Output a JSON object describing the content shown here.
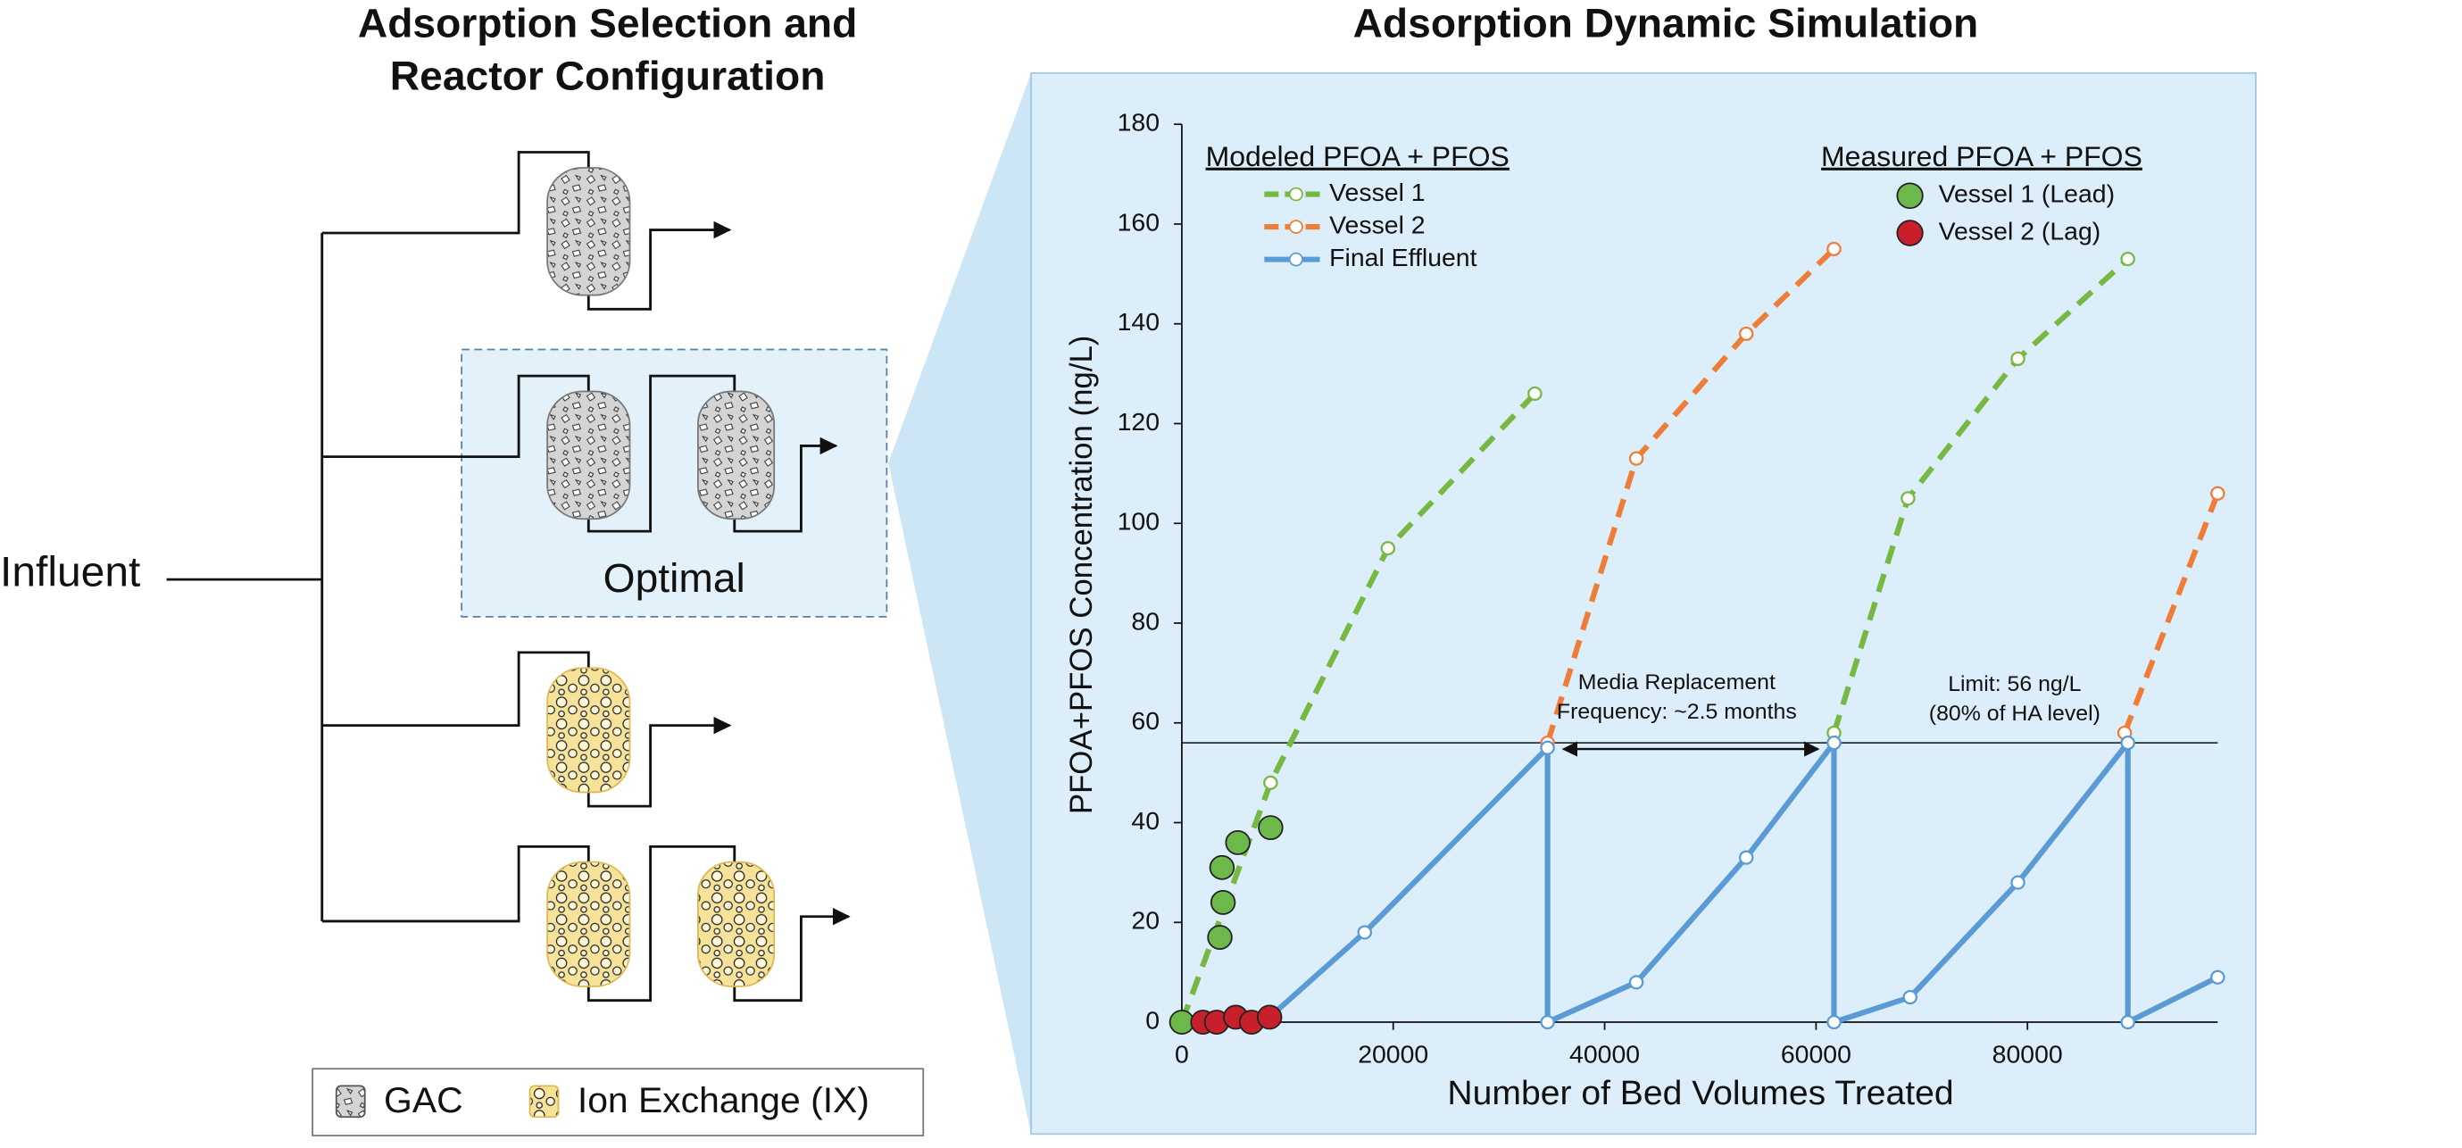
{
  "left_panel": {
    "title_lines": [
      "Adsorption Selection and",
      "Reactor Configuration"
    ],
    "influent_label": "Influent",
    "optimal_label": "Optimal",
    "legend": [
      "GAC",
      "Ion Exchange (IX)"
    ]
  },
  "chart_data": {
    "type": "line",
    "title": "Adsorption Dynamic Simulation",
    "x_label": "Number of Bed Volumes Treated",
    "y_label": "PFOA+PFOS Concentration (ng/L)",
    "xlim": [
      0,
      98000
    ],
    "ylim": [
      0,
      180
    ],
    "xticks": [
      0,
      20000,
      40000,
      60000,
      80000
    ],
    "yticks": [
      0,
      20,
      40,
      60,
      80,
      100,
      120,
      140,
      160,
      180
    ],
    "legend": {
      "modeled_title": "Modeled PFOA + PFOS",
      "measured_title": "Measured PFOA + PFOS"
    },
    "series": [
      {
        "name": "Vessel 1",
        "color": "#77b843",
        "style": "dashed",
        "x": [
          0,
          8400,
          19500,
          33400,
          null,
          61700,
          68700,
          79100,
          89500
        ],
        "values": [
          0,
          48,
          95,
          126,
          null,
          58,
          105,
          133,
          153
        ]
      },
      {
        "name": "Vessel 2",
        "color": "#ef7d3a",
        "style": "dashed",
        "x": [
          34600,
          43000,
          53400,
          61700,
          null,
          89200,
          98000
        ],
        "values": [
          56,
          113,
          138,
          155,
          null,
          58,
          106
        ]
      },
      {
        "name": "Final Effluent",
        "color": "#5b9bd5",
        "style": "solid",
        "x": [
          8300,
          17300,
          34600,
          34600,
          43000,
          53400,
          61700,
          61700,
          68900,
          79100,
          89500,
          89500,
          98000
        ],
        "values": [
          1,
          18,
          55,
          0,
          8,
          33,
          56,
          0,
          5,
          28,
          56,
          0,
          9
        ]
      },
      {
        "name": "Vessel 1 (Lead)",
        "color": "#6cb84a",
        "style": "scatter",
        "x": [
          0,
          3600,
          3900,
          3800,
          5300,
          8400
        ],
        "values": [
          0,
          17,
          24,
          31,
          36,
          39
        ]
      },
      {
        "name": "Vessel 2 (Lag)",
        "color": "#c8202a",
        "style": "scatter",
        "x": [
          2000,
          3300,
          5100,
          6600,
          8300
        ],
        "values": [
          0,
          0,
          1,
          0,
          1
        ]
      }
    ],
    "limit": 56,
    "annotations": [
      {
        "lines": [
          "Media Replacement",
          "Frequency: ~2.5 months"
        ]
      },
      {
        "lines": [
          "Limit: 56 ng/L",
          "(80% of HA level)"
        ]
      }
    ]
  }
}
